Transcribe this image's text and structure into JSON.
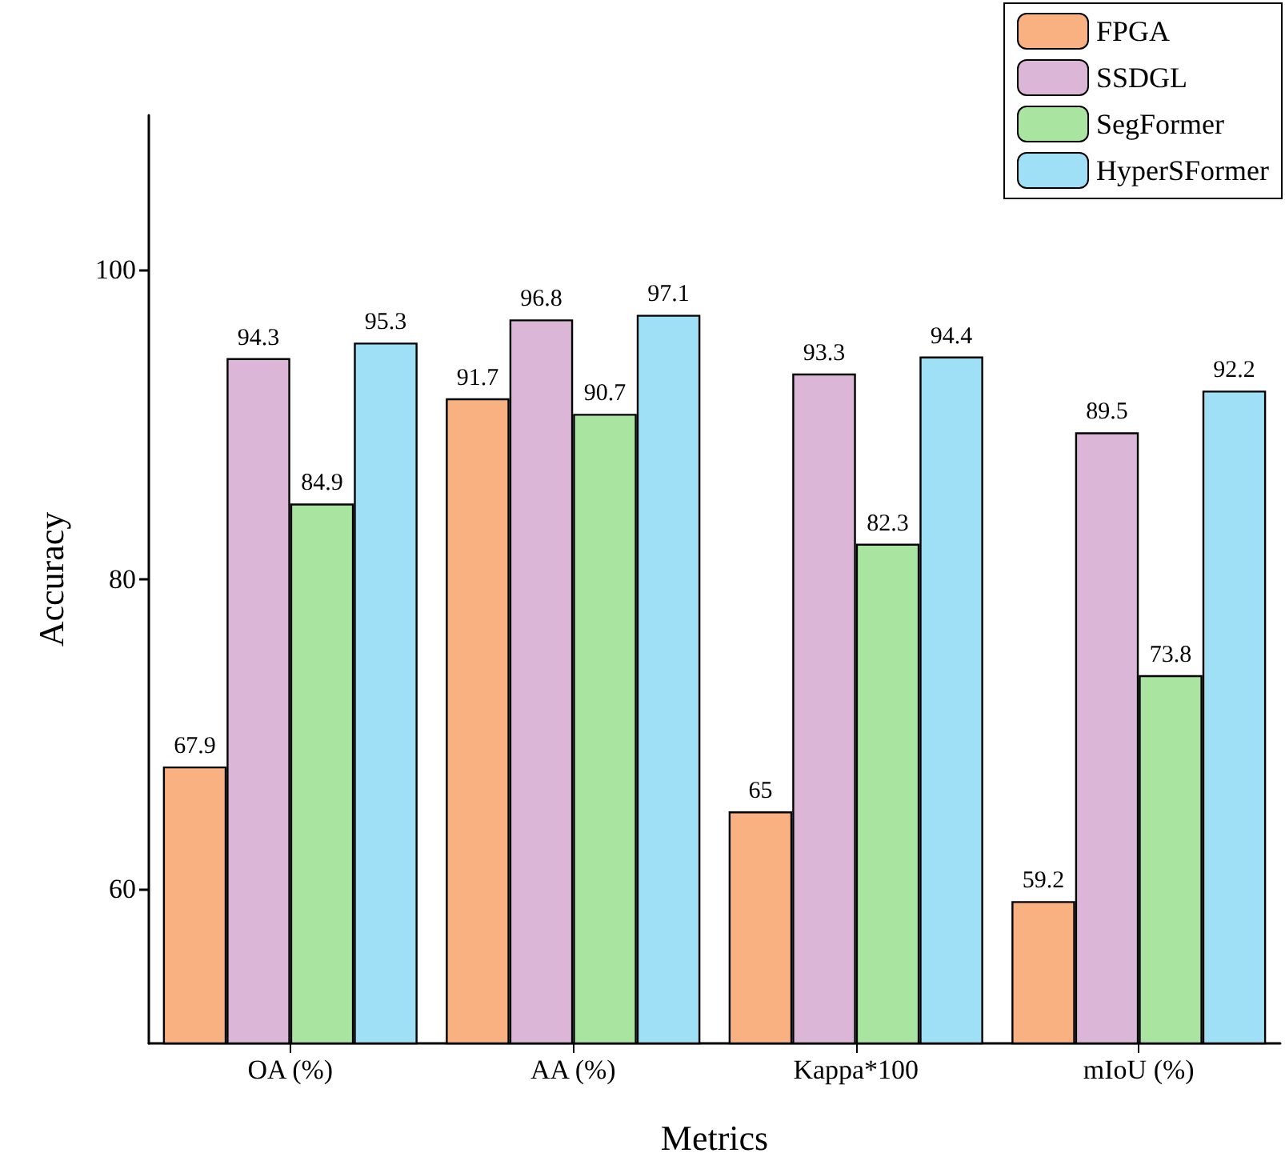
{
  "chart_data": {
    "type": "bar",
    "xlabel": "Metrics",
    "ylabel": "Accuracy",
    "categories": [
      "OA (%)",
      "AA (%)",
      "Kappa*100",
      "mIoU (%)"
    ],
    "series": [
      {
        "name": "FPGA",
        "color": "#f9b182",
        "values": [
          67.9,
          91.7,
          65,
          59.2
        ]
      },
      {
        "name": "SSDGL",
        "color": "#dcb6d6",
        "values": [
          94.3,
          96.8,
          93.3,
          89.5
        ]
      },
      {
        "name": "SegFormer",
        "color": "#a9e4a0",
        "values": [
          84.9,
          90.7,
          82.3,
          73.8
        ]
      },
      {
        "name": "HyperSFormer",
        "color": "#a0e0f7",
        "values": [
          95.3,
          97.1,
          94.4,
          92.2
        ]
      }
    ],
    "ylim": [
      50,
      110
    ],
    "yticks": [
      60,
      80,
      100
    ],
    "grid": false,
    "legend": "top right",
    "data_labels": true
  }
}
